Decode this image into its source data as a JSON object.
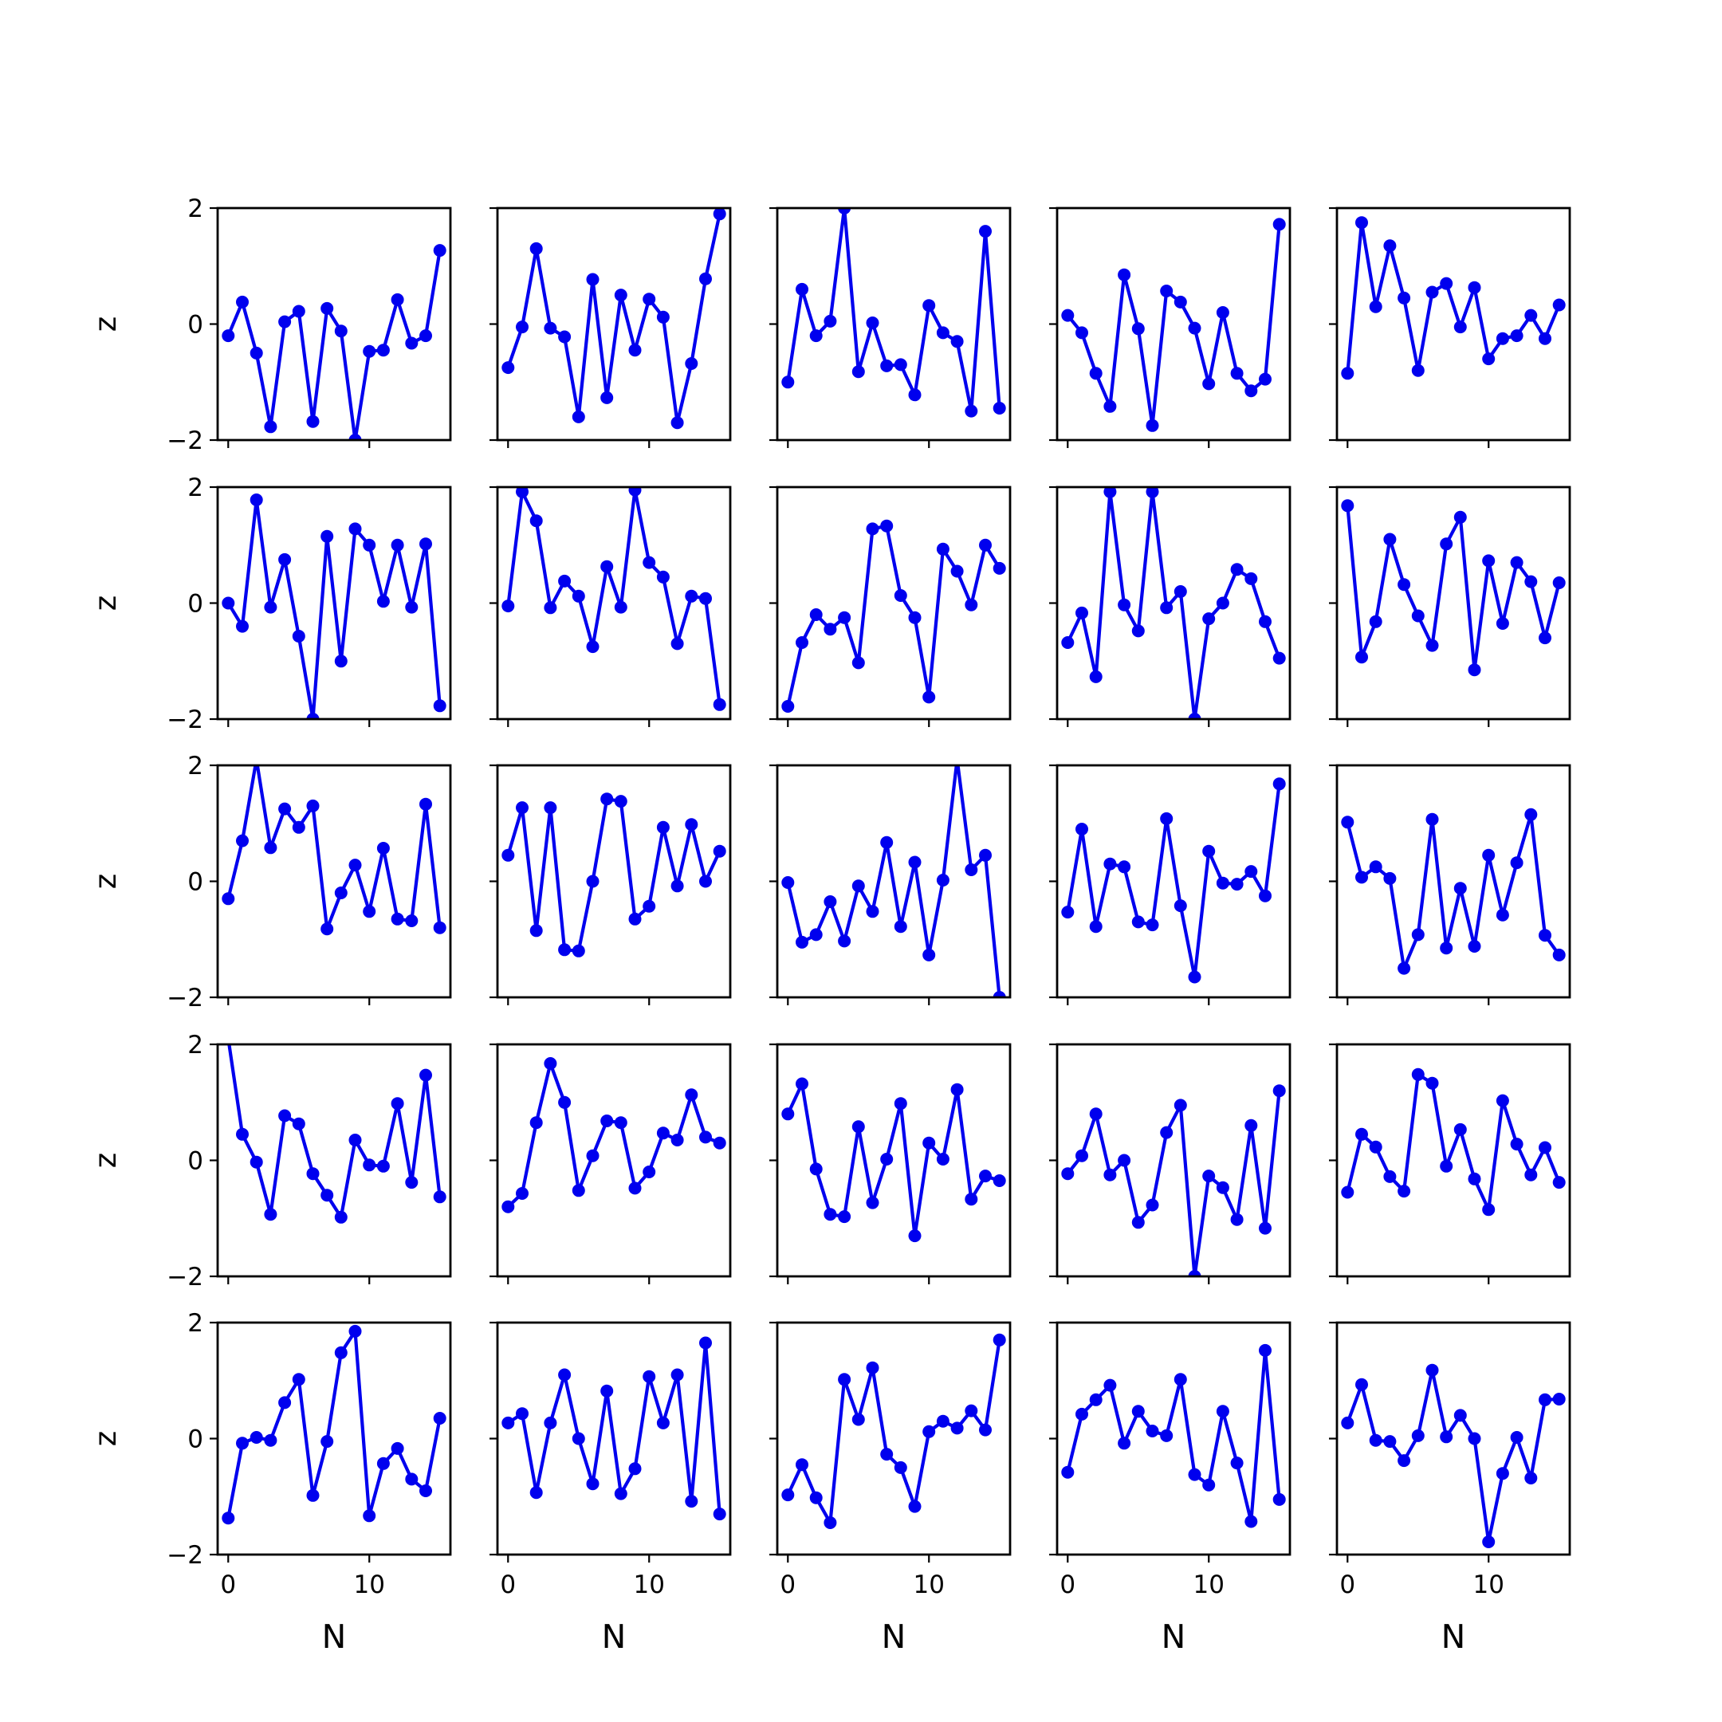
{
  "figure": {
    "line_color": "#0000ee",
    "axis_color": "#000000",
    "background": "#ffffff"
  },
  "chart_data": {
    "type": "line",
    "layout": {
      "rows": 5,
      "cols": 5,
      "sharex": true,
      "sharey": true
    },
    "xlabel": "N",
    "ylabel": "z",
    "xlim": [
      -0.75,
      15.75
    ],
    "ylim": [
      -2,
      2
    ],
    "xticks": [
      0,
      10
    ],
    "yticks": [
      -2,
      0,
      2
    ],
    "x": [
      0,
      1,
      2,
      3,
      4,
      5,
      6,
      7,
      8,
      9,
      10,
      11,
      12,
      13,
      14,
      15
    ],
    "panels": [
      [
        -0.2,
        0.38,
        -0.5,
        -1.77,
        0.04,
        0.22,
        -1.68,
        0.27,
        -0.12,
        -2.0,
        -0.47,
        -0.45,
        0.42,
        -0.33,
        -0.2,
        1.27
      ],
      [
        -0.75,
        -0.05,
        1.3,
        -0.07,
        -0.22,
        -1.6,
        0.77,
        -1.27,
        0.5,
        -0.45,
        0.43,
        0.12,
        -1.7,
        -0.68,
        0.78,
        1.9
      ],
      [
        -1.0,
        0.6,
        -0.2,
        0.05,
        2.0,
        -0.82,
        0.02,
        -0.72,
        -0.7,
        -1.22,
        0.32,
        -0.15,
        -0.3,
        -1.5,
        1.6,
        -1.45
      ],
      [
        0.15,
        -0.15,
        -0.85,
        -1.42,
        0.85,
        -0.08,
        -1.75,
        0.57,
        0.38,
        -0.07,
        -1.03,
        0.2,
        -0.85,
        -1.15,
        -0.95,
        1.72
      ],
      [
        -0.85,
        1.75,
        0.3,
        1.35,
        0.45,
        -0.8,
        0.55,
        0.7,
        -0.05,
        0.63,
        -0.6,
        -0.25,
        -0.2,
        0.15,
        -0.25,
        0.33
      ],
      [
        0.0,
        -0.4,
        1.78,
        -0.07,
        0.75,
        -0.57,
        -2.0,
        1.15,
        -1.0,
        1.28,
        1.0,
        0.03,
        1.0,
        -0.07,
        1.02,
        -1.77
      ],
      [
        -0.05,
        1.92,
        1.42,
        -0.08,
        0.38,
        0.12,
        -0.75,
        0.63,
        -0.07,
        1.95,
        0.7,
        0.45,
        -0.7,
        0.12,
        0.08,
        -1.75
      ],
      [
        -1.78,
        -0.68,
        -0.2,
        -0.45,
        -0.25,
        -1.03,
        1.28,
        1.33,
        0.13,
        -0.25,
        -1.62,
        0.93,
        0.55,
        -0.03,
        1.0,
        0.6
      ],
      [
        -0.68,
        -0.17,
        -1.27,
        1.92,
        -0.03,
        -0.48,
        1.92,
        -0.08,
        0.2,
        -2.0,
        -0.27,
        0.0,
        0.58,
        0.42,
        -0.32,
        -0.95
      ],
      [
        1.68,
        -0.93,
        -0.32,
        1.1,
        0.32,
        -0.22,
        -0.73,
        1.02,
        1.48,
        -1.15,
        0.73,
        -0.35,
        0.7,
        0.37,
        -0.6,
        0.35
      ],
      [
        -0.3,
        0.7,
        2.1,
        0.58,
        1.25,
        0.93,
        1.3,
        -0.82,
        -0.2,
        0.28,
        -0.52,
        0.57,
        -0.65,
        -0.68,
        1.33,
        -0.8
      ],
      [
        0.45,
        1.27,
        -0.85,
        1.27,
        -1.18,
        -1.2,
        0.0,
        1.42,
        1.38,
        -0.65,
        -0.43,
        0.93,
        -0.08,
        0.98,
        0.0,
        0.52
      ],
      [
        -0.02,
        -1.05,
        -0.92,
        -0.35,
        -1.03,
        -0.08,
        -0.52,
        0.67,
        -0.78,
        0.33,
        -1.27,
        0.02,
        2.1,
        0.2,
        0.45,
        -2.0
      ],
      [
        -0.53,
        0.9,
        -0.78,
        0.3,
        0.25,
        -0.7,
        -0.75,
        1.08,
        -0.42,
        -1.65,
        0.52,
        -0.03,
        -0.05,
        0.17,
        -0.25,
        1.68
      ],
      [
        1.02,
        0.07,
        0.25,
        0.05,
        -1.5,
        -0.92,
        1.07,
        -1.15,
        -0.12,
        -1.12,
        0.45,
        -0.58,
        0.32,
        1.15,
        -0.93,
        -1.27
      ],
      [
        2.1,
        0.45,
        -0.03,
        -0.93,
        0.77,
        0.63,
        -0.23,
        -0.6,
        -0.98,
        0.35,
        -0.08,
        -0.1,
        0.98,
        -0.38,
        1.47,
        -0.63
      ],
      [
        -0.8,
        -0.57,
        0.65,
        1.67,
        1.0,
        -0.52,
        0.08,
        0.68,
        0.65,
        -0.48,
        -0.2,
        0.47,
        0.35,
        1.13,
        0.4,
        0.3
      ],
      [
        0.8,
        1.32,
        -0.15,
        -0.93,
        -0.97,
        0.58,
        -0.73,
        0.02,
        0.98,
        -1.3,
        0.3,
        0.02,
        1.22,
        -0.67,
        -0.27,
        -0.35
      ],
      [
        -0.23,
        0.08,
        0.8,
        -0.25,
        0.0,
        -1.07,
        -0.77,
        0.48,
        0.95,
        -2.0,
        -0.27,
        -0.47,
        -1.02,
        0.6,
        -1.17,
        1.2
      ],
      [
        -0.55,
        0.45,
        0.23,
        -0.28,
        -0.53,
        1.48,
        1.33,
        -0.1,
        0.53,
        -0.32,
        -0.85,
        1.03,
        0.28,
        -0.25,
        0.22,
        -0.38
      ],
      [
        -1.37,
        -0.08,
        0.02,
        -0.03,
        0.62,
        1.02,
        -0.98,
        -0.05,
        1.48,
        1.85,
        -1.33,
        -0.43,
        -0.17,
        -0.7,
        -0.9,
        0.35
      ],
      [
        0.27,
        0.43,
        -0.93,
        0.27,
        1.1,
        0.0,
        -0.78,
        0.82,
        -0.95,
        -0.52,
        1.07,
        0.27,
        1.1,
        -1.08,
        1.65,
        -1.3
      ],
      [
        -0.97,
        -0.45,
        -1.02,
        -1.45,
        1.02,
        0.33,
        1.22,
        -0.27,
        -0.5,
        -1.17,
        0.12,
        0.3,
        0.18,
        0.48,
        0.15,
        1.7
      ],
      [
        -0.58,
        0.42,
        0.67,
        0.92,
        -0.08,
        0.47,
        0.13,
        0.05,
        1.02,
        -0.62,
        -0.8,
        0.47,
        -0.42,
        -1.43,
        1.52,
        -1.05
      ],
      [
        0.27,
        0.93,
        -0.03,
        -0.05,
        -0.38,
        0.05,
        1.18,
        0.03,
        0.4,
        0.0,
        -1.78,
        -0.6,
        0.02,
        -0.68,
        0.67,
        0.68
      ]
    ]
  }
}
